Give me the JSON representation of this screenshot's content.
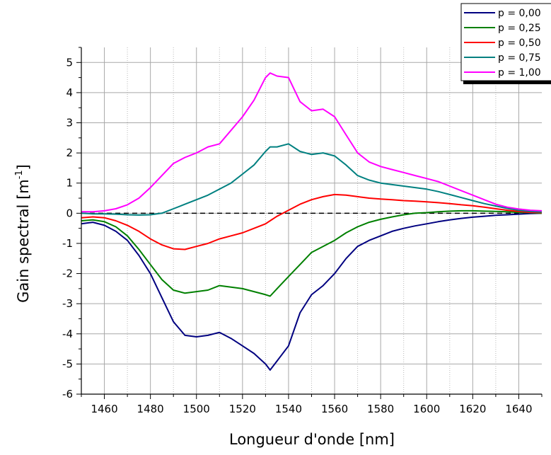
{
  "chart_data": {
    "type": "line",
    "title": "",
    "xlabel": "Longueur d'onde [nm]",
    "ylabel_main": "Gain spectral [m",
    "ylabel_sup": "-1",
    "ylabel_end": "]",
    "xlim": [
      1450,
      1650
    ],
    "ylim": [
      -6,
      5.5
    ],
    "x_ticks": [
      1460,
      1480,
      1500,
      1520,
      1540,
      1560,
      1580,
      1600,
      1620,
      1640
    ],
    "y_ticks": [
      -6,
      -5,
      -4,
      -3,
      -2,
      -1,
      0,
      1,
      2,
      3,
      4,
      5
    ],
    "grid": "on",
    "zero_line": "dashed",
    "legend_position": "top-right",
    "series": [
      {
        "name": "p = 0,00",
        "color": "#000080",
        "x": [
          1450,
          1455,
          1460,
          1465,
          1470,
          1475,
          1480,
          1485,
          1490,
          1495,
          1500,
          1505,
          1510,
          1515,
          1520,
          1525,
          1530,
          1532,
          1535,
          1540,
          1545,
          1550,
          1555,
          1560,
          1565,
          1570,
          1575,
          1580,
          1585,
          1590,
          1595,
          1600,
          1605,
          1610,
          1615,
          1620,
          1625,
          1630,
          1635,
          1640,
          1645,
          1650
        ],
        "y": [
          -0.35,
          -0.3,
          -0.4,
          -0.6,
          -0.9,
          -1.4,
          -2.0,
          -2.8,
          -3.6,
          -4.05,
          -4.1,
          -4.05,
          -3.95,
          -4.15,
          -4.4,
          -4.65,
          -5.0,
          -5.2,
          -4.9,
          -4.4,
          -3.3,
          -2.7,
          -2.4,
          -2.0,
          -1.5,
          -1.1,
          -0.9,
          -0.75,
          -0.6,
          -0.5,
          -0.42,
          -0.35,
          -0.28,
          -0.22,
          -0.17,
          -0.13,
          -0.1,
          -0.07,
          -0.05,
          -0.03,
          -0.01,
          0.0
        ]
      },
      {
        "name": "p = 0,25",
        "color": "#008000",
        "x": [
          1450,
          1455,
          1460,
          1465,
          1470,
          1475,
          1480,
          1485,
          1490,
          1495,
          1500,
          1505,
          1510,
          1515,
          1520,
          1525,
          1530,
          1532,
          1535,
          1540,
          1545,
          1550,
          1555,
          1560,
          1565,
          1570,
          1575,
          1580,
          1585,
          1590,
          1595,
          1600,
          1605,
          1610,
          1615,
          1620,
          1625,
          1630,
          1635,
          1640,
          1645,
          1650
        ],
        "y": [
          -0.25,
          -0.22,
          -0.28,
          -0.45,
          -0.75,
          -1.2,
          -1.7,
          -2.2,
          -2.55,
          -2.65,
          -2.6,
          -2.55,
          -2.4,
          -2.45,
          -2.5,
          -2.6,
          -2.7,
          -2.75,
          -2.5,
          -2.1,
          -1.7,
          -1.3,
          -1.1,
          -0.9,
          -0.65,
          -0.45,
          -0.3,
          -0.2,
          -0.12,
          -0.05,
          0.0,
          0.02,
          0.05,
          0.07,
          0.08,
          0.08,
          0.07,
          0.06,
          0.05,
          0.03,
          0.02,
          0.0
        ]
      },
      {
        "name": "p = 0,50",
        "color": "#ff0000",
        "x": [
          1450,
          1455,
          1460,
          1465,
          1470,
          1475,
          1480,
          1485,
          1490,
          1495,
          1500,
          1505,
          1510,
          1515,
          1520,
          1525,
          1530,
          1532,
          1535,
          1540,
          1545,
          1550,
          1555,
          1560,
          1565,
          1570,
          1575,
          1580,
          1585,
          1590,
          1595,
          1600,
          1605,
          1610,
          1615,
          1620,
          1625,
          1630,
          1635,
          1640,
          1645,
          1650
        ],
        "y": [
          -0.15,
          -0.12,
          -0.15,
          -0.25,
          -0.4,
          -0.6,
          -0.85,
          -1.05,
          -1.18,
          -1.2,
          -1.1,
          -1.0,
          -0.85,
          -0.75,
          -0.65,
          -0.5,
          -0.35,
          -0.25,
          -0.1,
          0.1,
          0.3,
          0.45,
          0.55,
          0.62,
          0.6,
          0.55,
          0.5,
          0.47,
          0.45,
          0.42,
          0.4,
          0.38,
          0.35,
          0.32,
          0.28,
          0.25,
          0.2,
          0.15,
          0.1,
          0.06,
          0.03,
          0.02
        ]
      },
      {
        "name": "p = 0,75",
        "color": "#008080",
        "x": [
          1450,
          1455,
          1460,
          1465,
          1470,
          1475,
          1480,
          1485,
          1490,
          1495,
          1500,
          1505,
          1510,
          1515,
          1520,
          1525,
          1530,
          1532,
          1535,
          1540,
          1545,
          1550,
          1555,
          1560,
          1565,
          1570,
          1575,
          1580,
          1585,
          1590,
          1595,
          1600,
          1605,
          1610,
          1615,
          1620,
          1625,
          1630,
          1635,
          1640,
          1645,
          1650
        ],
        "y": [
          0.0,
          -0.02,
          -0.02,
          -0.03,
          -0.05,
          -0.06,
          -0.05,
          0.0,
          0.15,
          0.3,
          0.45,
          0.6,
          0.8,
          1.0,
          1.3,
          1.6,
          2.05,
          2.2,
          2.2,
          2.3,
          2.05,
          1.95,
          2.0,
          1.9,
          1.6,
          1.25,
          1.1,
          1.0,
          0.95,
          0.9,
          0.85,
          0.8,
          0.72,
          0.62,
          0.52,
          0.42,
          0.32,
          0.24,
          0.16,
          0.1,
          0.06,
          0.04
        ]
      },
      {
        "name": "p = 1,00",
        "color": "#ff00ff",
        "x": [
          1450,
          1455,
          1460,
          1465,
          1470,
          1475,
          1480,
          1485,
          1490,
          1495,
          1500,
          1505,
          1510,
          1515,
          1520,
          1525,
          1530,
          1532,
          1535,
          1540,
          1545,
          1550,
          1555,
          1560,
          1565,
          1570,
          1575,
          1580,
          1585,
          1590,
          1595,
          1600,
          1605,
          1610,
          1615,
          1620,
          1625,
          1630,
          1635,
          1640,
          1645,
          1650
        ],
        "y": [
          0.05,
          0.05,
          0.08,
          0.15,
          0.28,
          0.5,
          0.85,
          1.25,
          1.65,
          1.85,
          2.0,
          2.2,
          2.3,
          2.75,
          3.2,
          3.75,
          4.5,
          4.65,
          4.55,
          4.5,
          3.7,
          3.4,
          3.45,
          3.2,
          2.6,
          2.0,
          1.7,
          1.55,
          1.45,
          1.35,
          1.25,
          1.15,
          1.05,
          0.9,
          0.75,
          0.6,
          0.45,
          0.3,
          0.2,
          0.14,
          0.1,
          0.08
        ]
      }
    ]
  }
}
